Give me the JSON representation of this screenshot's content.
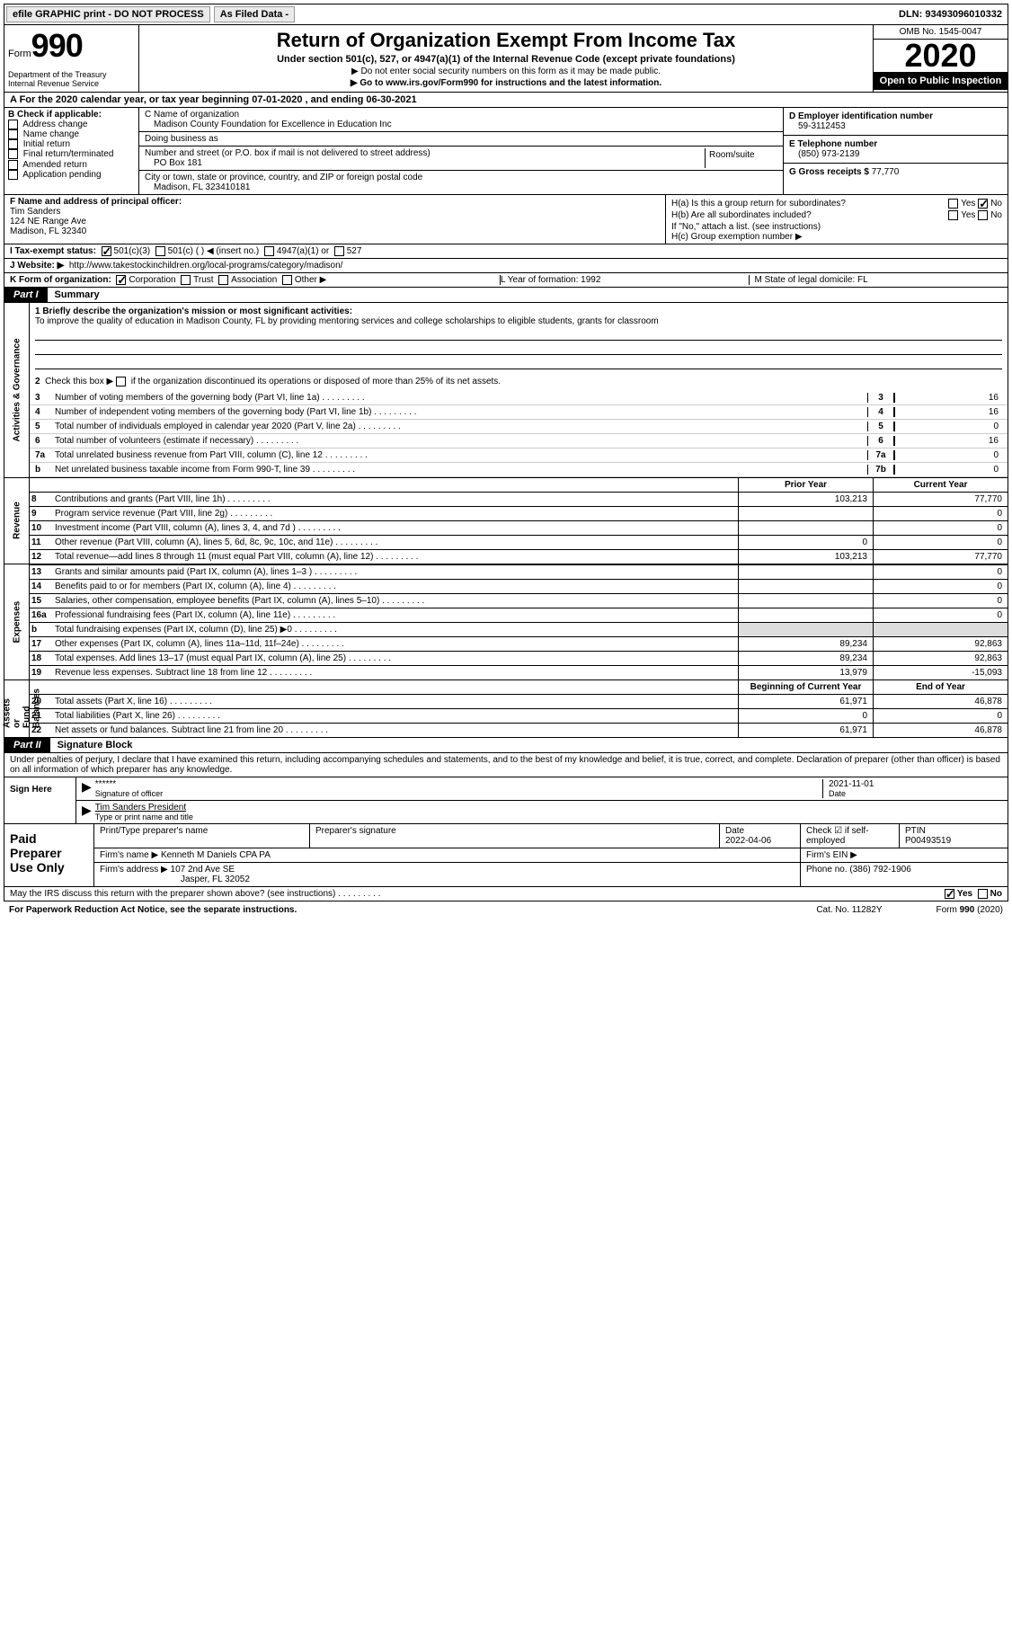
{
  "topbar": {
    "efile": "efile GRAPHIC print - DO NOT PROCESS",
    "asfiled": "As Filed Data -",
    "dln_label": "DLN:",
    "dln": "93493096010332"
  },
  "header": {
    "form_word": "Form",
    "form_num": "990",
    "dept": "Department of the Treasury\nInternal Revenue Service",
    "title": "Return of Organization Exempt From Income Tax",
    "sub": "Under section 501(c), 527, or 4947(a)(1) of the Internal Revenue Code (except private foundations)",
    "sub2a": "▶ Do not enter social security numbers on this form as it may be made public.",
    "sub2b": "▶ Go to www.irs.gov/Form990 for instructions and the latest information.",
    "omb": "OMB No. 1545-0047",
    "year": "2020",
    "open": "Open to Public Inspection"
  },
  "row_a": "A   For the 2020 calendar year, or tax year beginning 07-01-2020   , and ending 06-30-2021",
  "col_b": {
    "hd": "B Check if applicable:",
    "items": [
      "Address change",
      "Name change",
      "Initial return",
      "Final return/terminated",
      "Amended return",
      "Application pending"
    ]
  },
  "col_c": {
    "name_lab": "C Name of organization",
    "name": "Madison County Foundation for Excellence in Education Inc",
    "dba_lab": "Doing business as",
    "dba": "",
    "addr_lab": "Number and street (or P.O. box if mail is not delivered to street address)",
    "addr": "PO Box 181",
    "room_lab": "Room/suite",
    "city_lab": "City or town, state or province, country, and ZIP or foreign postal code",
    "city": "Madison, FL  323410181"
  },
  "col_d": {
    "ein_lab": "D Employer identification number",
    "ein": "59-3112453",
    "tel_lab": "E Telephone number",
    "tel": "(850) 973-2139",
    "gross_lab": "G Gross receipts $",
    "gross": "77,770"
  },
  "col_f": {
    "lab": "F  Name and address of principal officer:",
    "name": "Tim Sanders",
    "addr1": "124 NE Range Ave",
    "addr2": "Madison, FL  32340"
  },
  "col_h": {
    "ha": "H(a)  Is this a group return for subordinates?",
    "ha_yes": "Yes",
    "ha_no": "No",
    "hb": "H(b)  Are all subordinates included?",
    "hb_note": "If \"No,\" attach a list. (see instructions)",
    "hc": "H(c)  Group exemption number ▶"
  },
  "row_i": {
    "lab": "I   Tax-exempt status:",
    "o1": "501(c)(3)",
    "o2": "501(c) (   ) ◀ (insert no.)",
    "o3": "4947(a)(1) or",
    "o4": "527"
  },
  "row_j": {
    "lab": "J   Website: ▶",
    "val": "http://www.takestockinchildren.org/local-programs/category/madison/"
  },
  "row_k": {
    "lab": "K Form of organization:",
    "o1": "Corporation",
    "o2": "Trust",
    "o3": "Association",
    "o4": "Other ▶"
  },
  "row_l": {
    "l1": "L Year of formation: 1992",
    "l2": "M State of legal domicile: FL"
  },
  "part1": {
    "tag": "Part I",
    "title": "Summary"
  },
  "mission": {
    "line1_lab": "1 Briefly describe the organization's mission or most significant activities:",
    "text": "To improve the quality of education in Madison County, FL by providing mentoring services and college scholarships to eligible students, grants for classroom",
    "line2": "2   Check this box ▶        if the organization discontinued its operations or disposed of more than 25% of its net assets."
  },
  "gov_lines": [
    {
      "n": "3",
      "t": "Number of voting members of the governing body (Part VI, line 1a)",
      "b": "3",
      "v": "16"
    },
    {
      "n": "4",
      "t": "Number of independent voting members of the governing body (Part VI, line 1b)",
      "b": "4",
      "v": "16"
    },
    {
      "n": "5",
      "t": "Total number of individuals employed in calendar year 2020 (Part V, line 2a)",
      "b": "5",
      "v": "0"
    },
    {
      "n": "6",
      "t": "Total number of volunteers (estimate if necessary)",
      "b": "6",
      "v": "16"
    },
    {
      "n": "7a",
      "t": "Total unrelated business revenue from Part VIII, column (C), line 12",
      "b": "7a",
      "v": "0"
    },
    {
      "n": "b",
      "t": "Net unrelated business taxable income from Form 990-T, line 39",
      "b": "7b",
      "v": "0"
    }
  ],
  "fin_hdr": {
    "c1": "Prior Year",
    "c2": "Current Year"
  },
  "revenue": [
    {
      "n": "8",
      "t": "Contributions and grants (Part VIII, line 1h)",
      "c1": "103,213",
      "c2": "77,770"
    },
    {
      "n": "9",
      "t": "Program service revenue (Part VIII, line 2g)",
      "c1": "",
      "c2": "0"
    },
    {
      "n": "10",
      "t": "Investment income (Part VIII, column (A), lines 3, 4, and 7d )",
      "c1": "",
      "c2": "0"
    },
    {
      "n": "11",
      "t": "Other revenue (Part VIII, column (A), lines 5, 6d, 8c, 9c, 10c, and 11e)",
      "c1": "0",
      "c2": "0"
    },
    {
      "n": "12",
      "t": "Total revenue—add lines 8 through 11 (must equal Part VIII, column (A), line 12)",
      "c1": "103,213",
      "c2": "77,770"
    }
  ],
  "expenses": [
    {
      "n": "13",
      "t": "Grants and similar amounts paid (Part IX, column (A), lines 1–3 )",
      "c1": "",
      "c2": "0"
    },
    {
      "n": "14",
      "t": "Benefits paid to or for members (Part IX, column (A), line 4)",
      "c1": "",
      "c2": "0"
    },
    {
      "n": "15",
      "t": "Salaries, other compensation, employee benefits (Part IX, column (A), lines 5–10)",
      "c1": "",
      "c2": "0"
    },
    {
      "n": "16a",
      "t": "Professional fundraising fees (Part IX, column (A), line 11e)",
      "c1": "",
      "c2": "0"
    },
    {
      "n": "b",
      "t": "Total fundraising expenses (Part IX, column (D), line 25) ▶0",
      "c1": "shade",
      "c2": "shade"
    },
    {
      "n": "17",
      "t": "Other expenses (Part IX, column (A), lines 11a–11d, 11f–24e)",
      "c1": "89,234",
      "c2": "92,863"
    },
    {
      "n": "18",
      "t": "Total expenses. Add lines 13–17 (must equal Part IX, column (A), line 25)",
      "c1": "89,234",
      "c2": "92,863"
    },
    {
      "n": "19",
      "t": "Revenue less expenses. Subtract line 18 from line 12",
      "c1": "13,979",
      "c2": "-15,093"
    }
  ],
  "net_hdr": {
    "c1": "Beginning of Current Year",
    "c2": "End of Year"
  },
  "net": [
    {
      "n": "20",
      "t": "Total assets (Part X, line 16)",
      "c1": "61,971",
      "c2": "46,878"
    },
    {
      "n": "21",
      "t": "Total liabilities (Part X, line 26)",
      "c1": "0",
      "c2": "0"
    },
    {
      "n": "22",
      "t": "Net assets or fund balances. Subtract line 21 from line 20",
      "c1": "61,971",
      "c2": "46,878"
    }
  ],
  "vlabels": {
    "gov": "Activities & Governance",
    "rev": "Revenue",
    "exp": "Expenses",
    "net": "Net Assets or\nFund Balances"
  },
  "part2": {
    "tag": "Part II",
    "title": "Signature Block"
  },
  "sig": {
    "intro": "Under penalties of perjury, I declare that I have examined this return, including accompanying schedules and statements, and to the best of my knowledge and belief, it is true, correct, and complete. Declaration of preparer (other than officer) is based on all information of which preparer has any knowledge.",
    "sign_here": "Sign Here",
    "stars": "******",
    "sig_of": "Signature of officer",
    "date": "2021-11-01",
    "date_lab": "Date",
    "name": "Tim Sanders President",
    "name_lab": "Type or print name and title"
  },
  "prep": {
    "lbl": "Paid Preparer Use Only",
    "r1": {
      "c1": "Print/Type preparer's name",
      "c2": "Preparer's signature",
      "c3l": "Date",
      "c3": "2022-04-06",
      "c4": "Check ☑ if self-employed",
      "c5l": "PTIN",
      "c5": "P00493519"
    },
    "r2": {
      "c1l": "Firm's name      ▶",
      "c1": "Kenneth M Daniels CPA PA",
      "c2l": "Firm's EIN ▶",
      "c2": ""
    },
    "r3": {
      "c1l": "Firm's address ▶",
      "c1a": "107 2nd Ave SE",
      "c1b": "Jasper, FL  32052",
      "c2l": "Phone no.",
      "c2": "(386) 792-1906"
    }
  },
  "footer": {
    "q": "May the IRS discuss this return with the preparer shown above? (see instructions)",
    "yes": "Yes",
    "no": "No",
    "pra": "For Paperwork Reduction Act Notice, see the separate instructions.",
    "cat": "Cat. No. 11282Y",
    "form": "Form 990 (2020)"
  }
}
